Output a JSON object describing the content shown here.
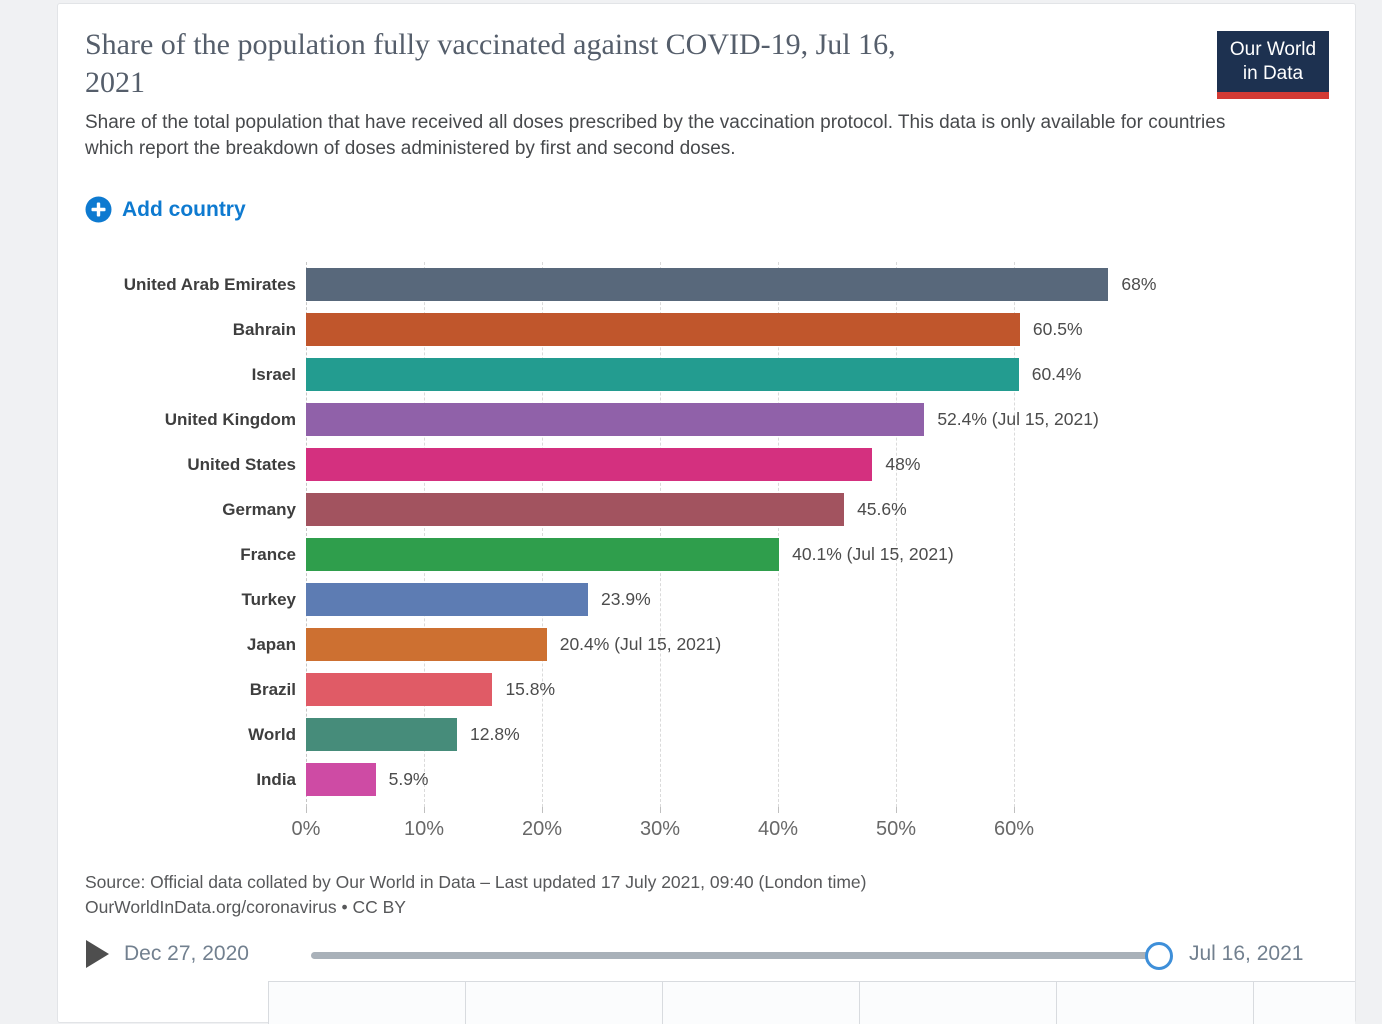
{
  "header": {
    "title_line1": "Share of the population fully vaccinated against COVID-19, Jul 16,",
    "title_line2": "2021",
    "subtitle": "Share of the total population that have received all doses prescribed by the vaccination protocol. This data is only available for countries which report the breakdown of doses administered by first and second doses.",
    "logo": {
      "line1": "Our World",
      "line2": "in Data",
      "bg_color": "#1d3150",
      "accent_color": "#d23a34"
    }
  },
  "controls": {
    "add_country_label": "Add country",
    "accent_color": "#0e7ad0"
  },
  "chart_data": {
    "type": "bar",
    "orientation": "horizontal",
    "title": "Share of the population fully vaccinated against COVID-19, Jul 16, 2021",
    "subtitle": "Share of the total population that have received all doses prescribed by the vaccination protocol. This data is only available for countries which report the breakdown of doses administered by first and second doses.",
    "unit": "%",
    "categories": [
      "United Arab Emirates",
      "Bahrain",
      "Israel",
      "United Kingdom",
      "United States",
      "Germany",
      "France",
      "Turkey",
      "Japan",
      "Brazil",
      "World",
      "India"
    ],
    "values": [
      68,
      60.5,
      60.4,
      52.4,
      48,
      45.6,
      40.1,
      23.9,
      20.4,
      15.8,
      12.8,
      5.9
    ],
    "value_labels": [
      "68%",
      "60.5%",
      "60.4%",
      "52.4% (Jul 15, 2021)",
      "48%",
      "45.6%",
      "40.1% (Jul 15, 2021)",
      "23.9%",
      "20.4% (Jul 15, 2021)",
      "15.8%",
      "12.8%",
      "5.9%"
    ],
    "bar_colors": [
      "#58687b",
      "#c0562c",
      "#239c90",
      "#9061a9",
      "#d4307f",
      "#a2535f",
      "#2f9e4c",
      "#5d7cb3",
      "#cd7031",
      "#e05b66",
      "#468c7a",
      "#ce4ba4"
    ],
    "x_ticks": [
      "0%",
      "10%",
      "20%",
      "30%",
      "40%",
      "50%",
      "60%"
    ],
    "x_tick_values": [
      0,
      10,
      20,
      30,
      40,
      50,
      60
    ],
    "xlim": [
      0,
      71
    ],
    "grid": "dashed-vertical",
    "legend": "none"
  },
  "footer": {
    "source_line1": "Source: Official data collated by Our World in Data – Last updated 17 July 2021, 09:40 (London time)",
    "source_line2": "OurWorldInData.org/coronavirus • CC BY"
  },
  "timeline": {
    "start_label": "Dec 27, 2020",
    "end_label": "Jul 16, 2021"
  }
}
